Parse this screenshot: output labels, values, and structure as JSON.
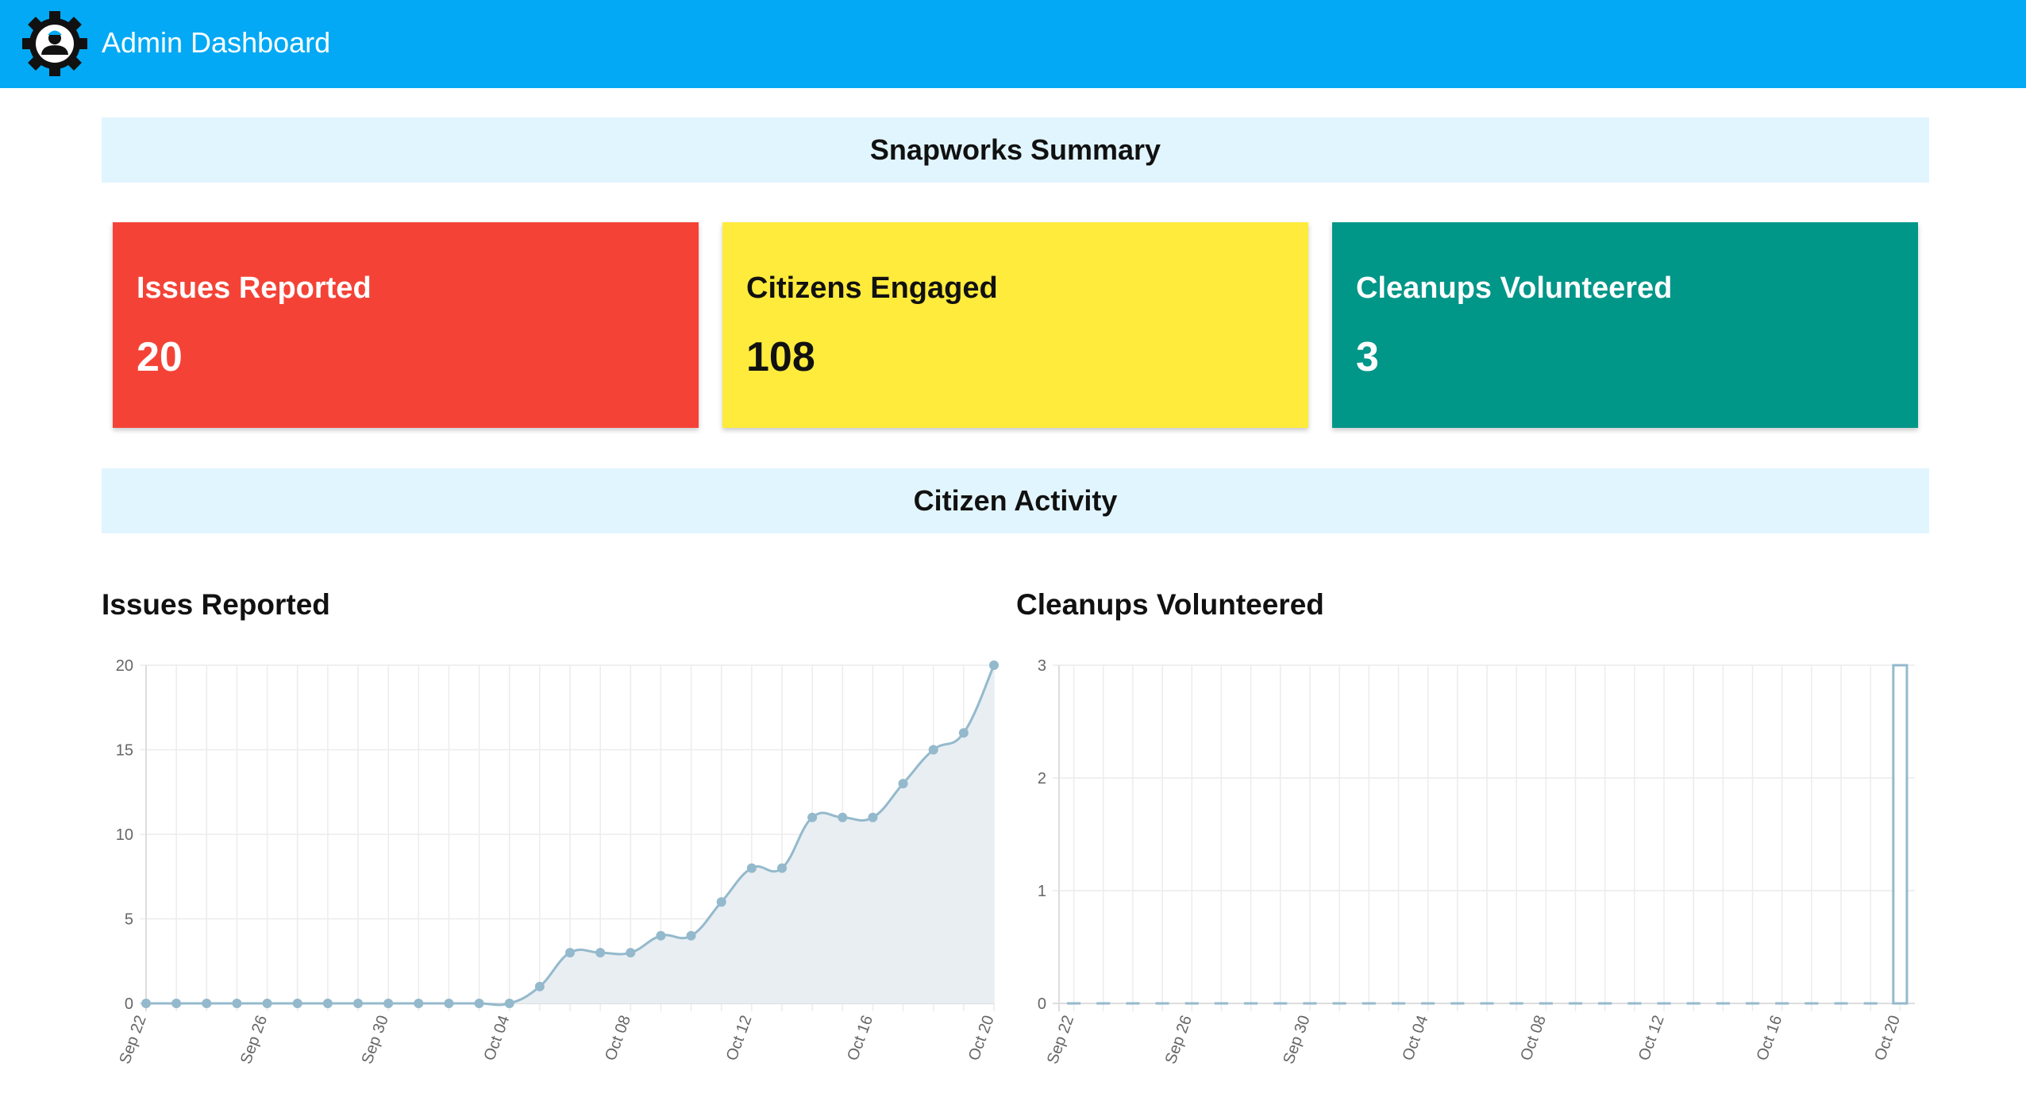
{
  "header": {
    "title": "Admin Dashboard",
    "logo_icon": "gear-person-logo-icon",
    "background": "#03a9f4"
  },
  "summary": {
    "heading": "Snapworks Summary",
    "cards": [
      {
        "label": "Issues Reported",
        "value": "20",
        "color": "#f44336",
        "text_color": "#ffffff"
      },
      {
        "label": "Citizens Engaged",
        "value": "108",
        "color": "#ffeb3b",
        "text_color": "#111111"
      },
      {
        "label": "Cleanups Volunteered",
        "value": "3",
        "color": "#009688",
        "text_color": "#ffffff"
      }
    ]
  },
  "activity": {
    "heading": "Citizen Activity"
  },
  "chart_data": [
    {
      "type": "area",
      "title": "Issues Reported",
      "x_tick_labels": [
        "Sep 22",
        "Sep 26",
        "Sep 30",
        "Oct 04",
        "Oct 08",
        "Oct 12",
        "Oct 16",
        "Oct 20"
      ],
      "x": [
        "Sep 22",
        "Sep 23",
        "Sep 24",
        "Sep 25",
        "Sep 26",
        "Sep 27",
        "Sep 28",
        "Sep 29",
        "Sep 30",
        "Oct 01",
        "Oct 02",
        "Oct 03",
        "Oct 04",
        "Oct 05",
        "Oct 06",
        "Oct 07",
        "Oct 08",
        "Oct 09",
        "Oct 10",
        "Oct 11",
        "Oct 12",
        "Oct 13",
        "Oct 14",
        "Oct 15",
        "Oct 16",
        "Oct 17",
        "Oct 18",
        "Oct 19",
        "Oct 20"
      ],
      "values": [
        0,
        0,
        0,
        0,
        0,
        0,
        0,
        0,
        0,
        0,
        0,
        0,
        0,
        1,
        3,
        3,
        3,
        4,
        4,
        6,
        8,
        8,
        11,
        11,
        11,
        13,
        15,
        16,
        20
      ],
      "y_ticks": [
        "0",
        "5",
        "10",
        "15",
        "20"
      ],
      "ylim": [
        0,
        20
      ],
      "grid": true,
      "line_color": "#94b9cc",
      "fill_color": "#e8eef2"
    },
    {
      "type": "bar",
      "title": "Cleanups Volunteered",
      "x_tick_labels": [
        "Sep 22",
        "Sep 26",
        "Sep 30",
        "Oct 04",
        "Oct 08",
        "Oct 12",
        "Oct 16",
        "Oct 20"
      ],
      "x": [
        "Sep 22",
        "Sep 23",
        "Sep 24",
        "Sep 25",
        "Sep 26",
        "Sep 27",
        "Sep 28",
        "Sep 29",
        "Sep 30",
        "Oct 01",
        "Oct 02",
        "Oct 03",
        "Oct 04",
        "Oct 05",
        "Oct 06",
        "Oct 07",
        "Oct 08",
        "Oct 09",
        "Oct 10",
        "Oct 11",
        "Oct 12",
        "Oct 13",
        "Oct 14",
        "Oct 15",
        "Oct 16",
        "Oct 17",
        "Oct 18",
        "Oct 19",
        "Oct 20"
      ],
      "values": [
        0,
        0,
        0,
        0,
        0,
        0,
        0,
        0,
        0,
        0,
        0,
        0,
        0,
        0,
        0,
        0,
        0,
        0,
        0,
        0,
        0,
        0,
        0,
        0,
        0,
        0,
        0,
        0,
        3
      ],
      "y_ticks": [
        "0",
        "1",
        "2",
        "3"
      ],
      "ylim": [
        0,
        3
      ],
      "grid": true,
      "line_color": "#94b9cc"
    }
  ]
}
